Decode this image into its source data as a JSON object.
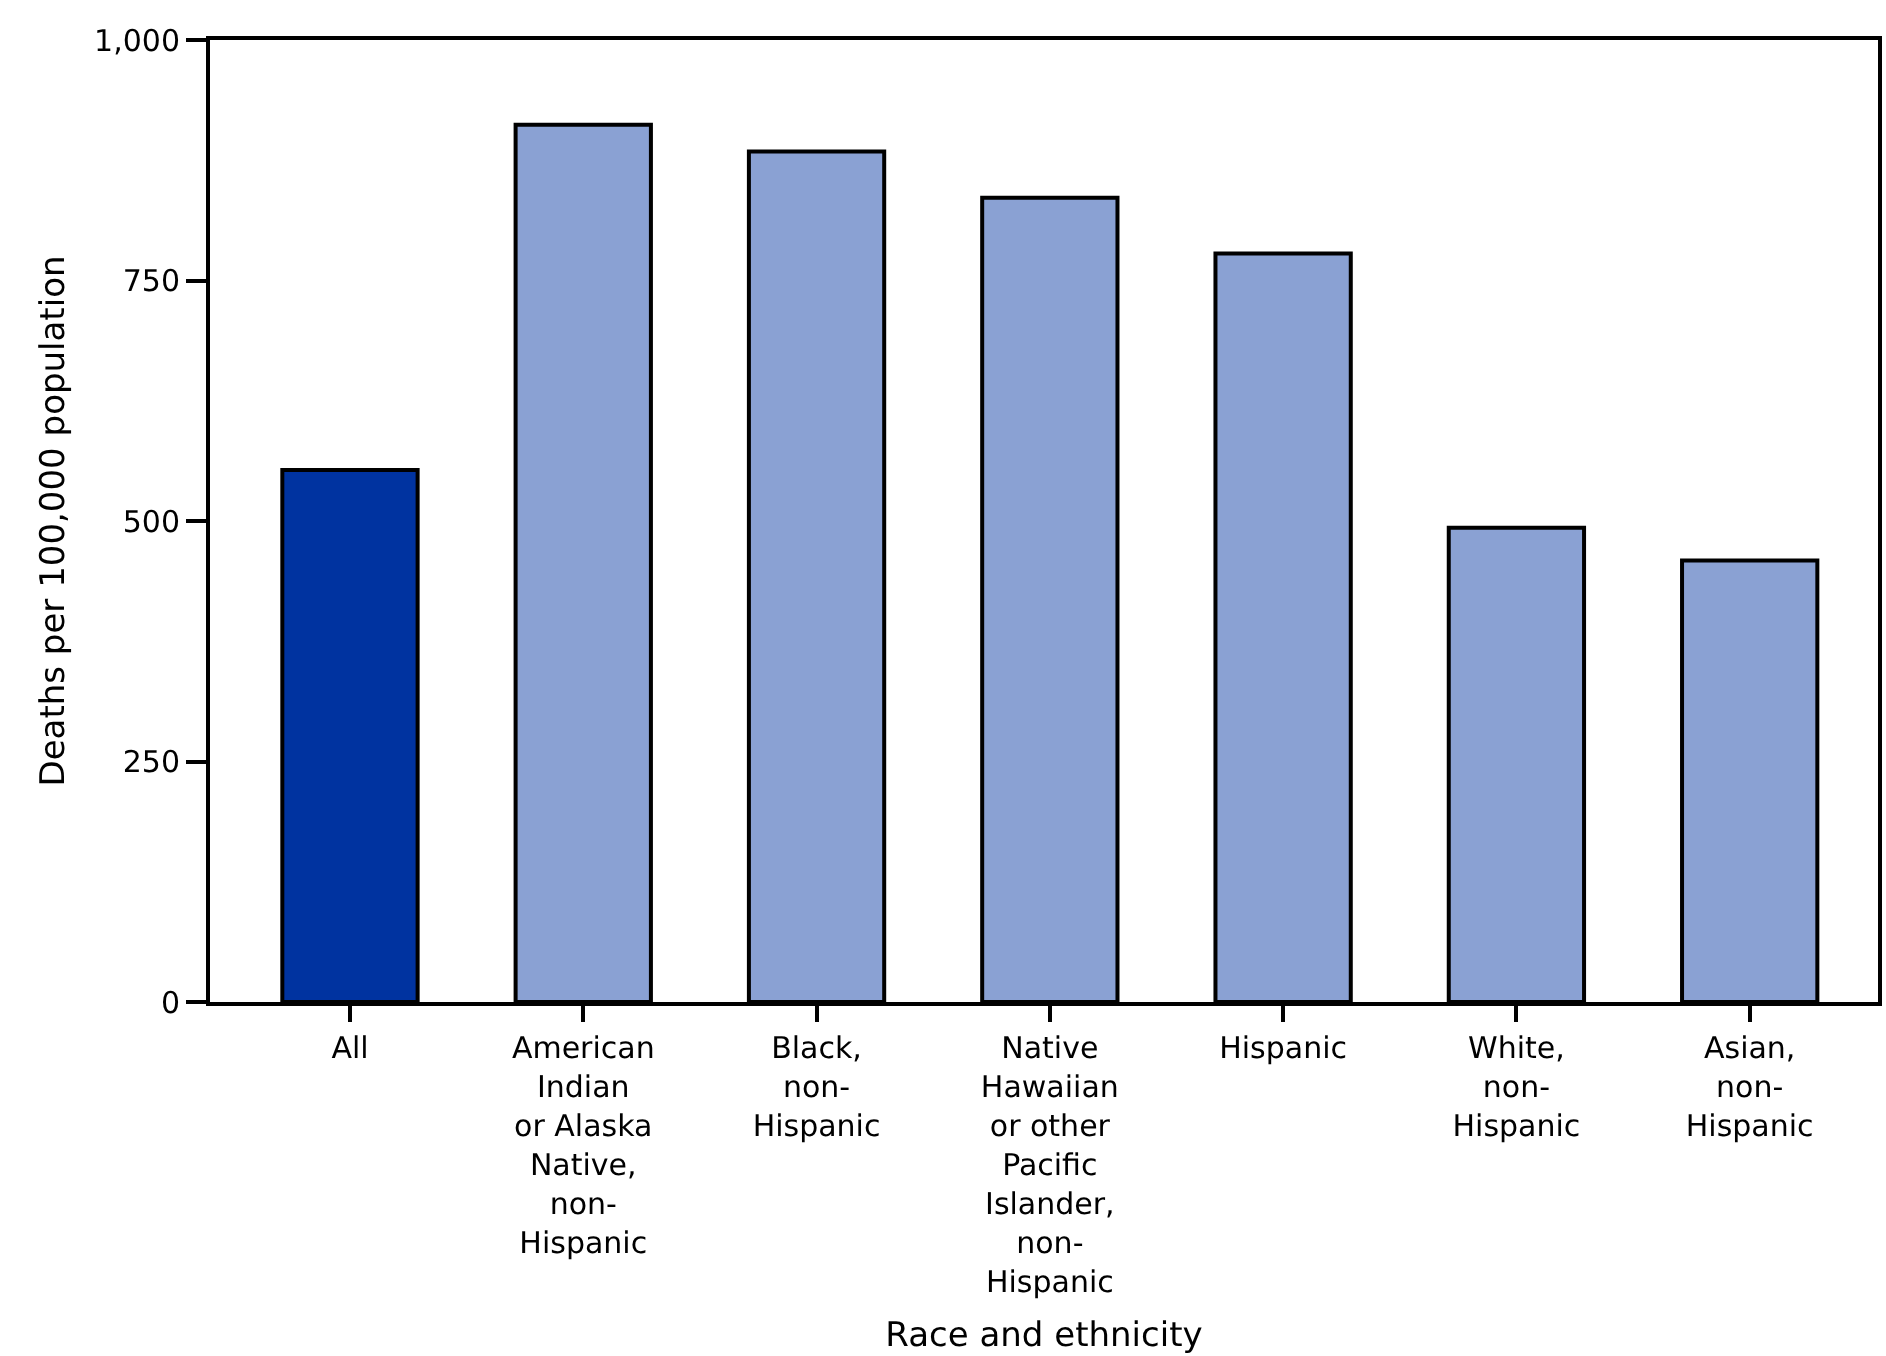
{
  "chart_data": {
    "type": "bar",
    "xlabel": "Race and ethnicity",
    "ylabel": "Deaths per 100,000 population",
    "categories": [
      "All",
      "American\nIndian\nor Alaska\nNative,\nnon-\nHispanic",
      "Black,\nnon-\nHispanic",
      "Native\nHawaiian\nor other\nPacific\nIslander,\nnon-\nHispanic",
      "Hispanic",
      "White,\nnon-\nHispanic",
      "Asian,\nnon-\nHispanic"
    ],
    "values": [
      553,
      912,
      884,
      836,
      778,
      493,
      459
    ],
    "colors": [
      "#0033a0",
      "#8aa1d3",
      "#8aa1d3",
      "#8aa1d3",
      "#8aa1d3",
      "#8aa1d3",
      "#8aa1d3"
    ],
    "ylim": [
      0,
      1000
    ],
    "yticks": [
      0,
      250,
      500,
      750,
      {
        "value": 1000,
        "label": "1,000"
      }
    ],
    "grid": false
  }
}
